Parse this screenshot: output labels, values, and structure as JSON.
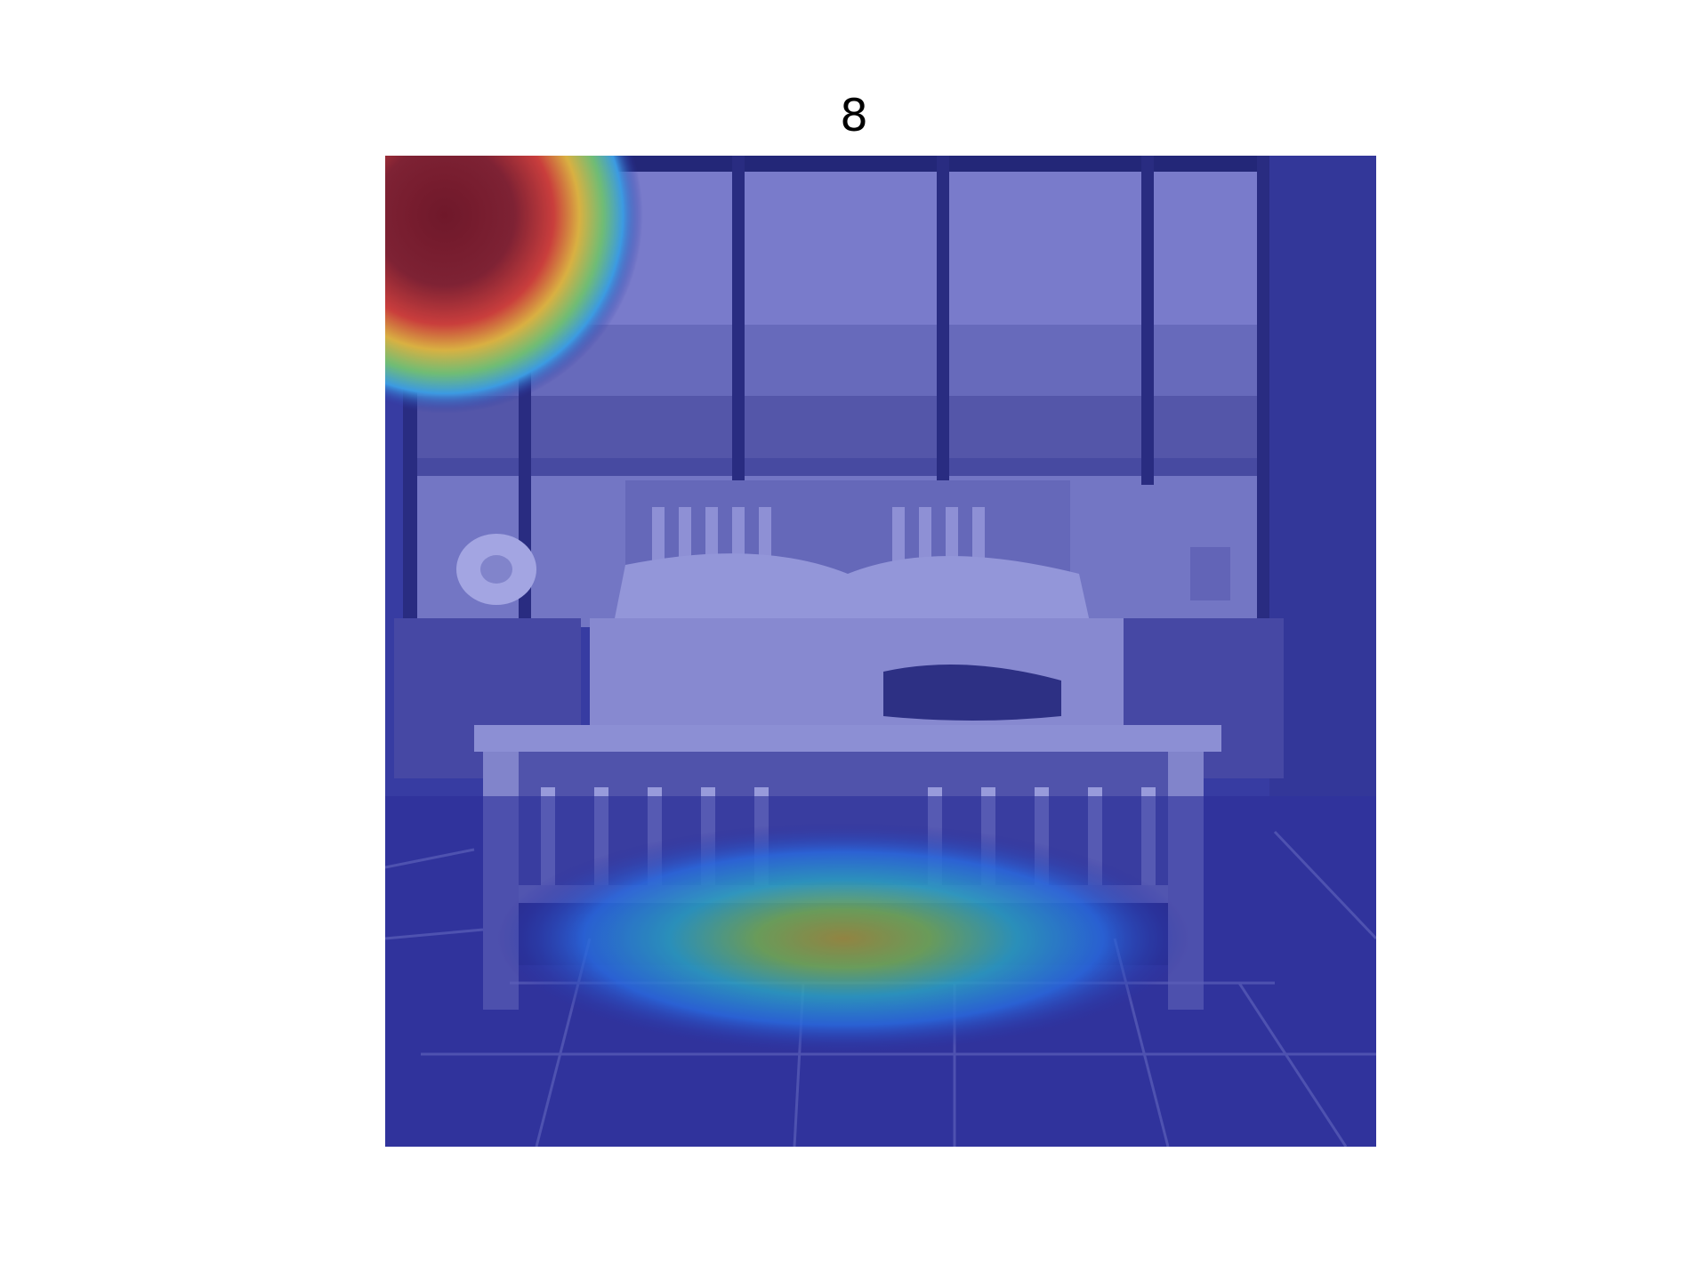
{
  "figure": {
    "title": "8"
  },
  "image": {
    "subject": "bedroom-with-bed-and-windows",
    "overlay": "attention-heatmap",
    "colormap": "jet",
    "colors": {
      "background_overlay": "#2b2f9a",
      "hot_spot": "#8a1a1a",
      "warm": "#f2c230",
      "cool": "#3fa9e6",
      "mid": "#7ad06a",
      "window_glass": "#8a8cd0",
      "bed_frame": "#8e90cc"
    }
  }
}
